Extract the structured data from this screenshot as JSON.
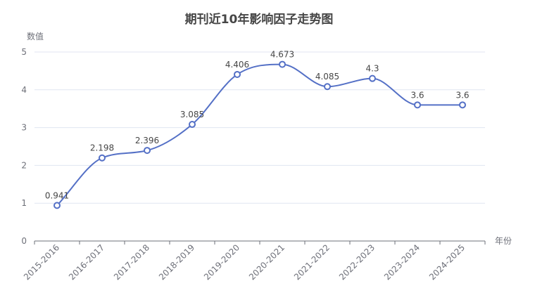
{
  "chart_data": {
    "type": "line",
    "title": "期刊近10年影响因子走势图",
    "xlabel": "年份",
    "ylabel": "数值",
    "categories": [
      "2015-2016",
      "2016-2017",
      "2017-2018",
      "2018-2019",
      "2019-2020",
      "2020-2021",
      "2021-2022",
      "2022-2023",
      "2023-2024",
      "2024-2025"
    ],
    "series": [
      {
        "values": [
          0.941,
          2.198,
          2.396,
          3.085,
          4.406,
          4.673,
          4.085,
          4.3,
          3.6,
          3.6
        ]
      }
    ],
    "data_labels": [
      "0.941",
      "2.198",
      "2.396",
      "3.085",
      "4.406",
      "4.673",
      "4.085",
      "4.3",
      "3.6",
      "3.6"
    ],
    "yticks": [
      "0",
      "1",
      "2",
      "3",
      "4",
      "5"
    ],
    "ylim": [
      0,
      5
    ],
    "grid": true,
    "smooth": true,
    "line_color": "#5470c6",
    "grid_color": "#e0e6f1",
    "axis_color": "#6e7079"
  }
}
